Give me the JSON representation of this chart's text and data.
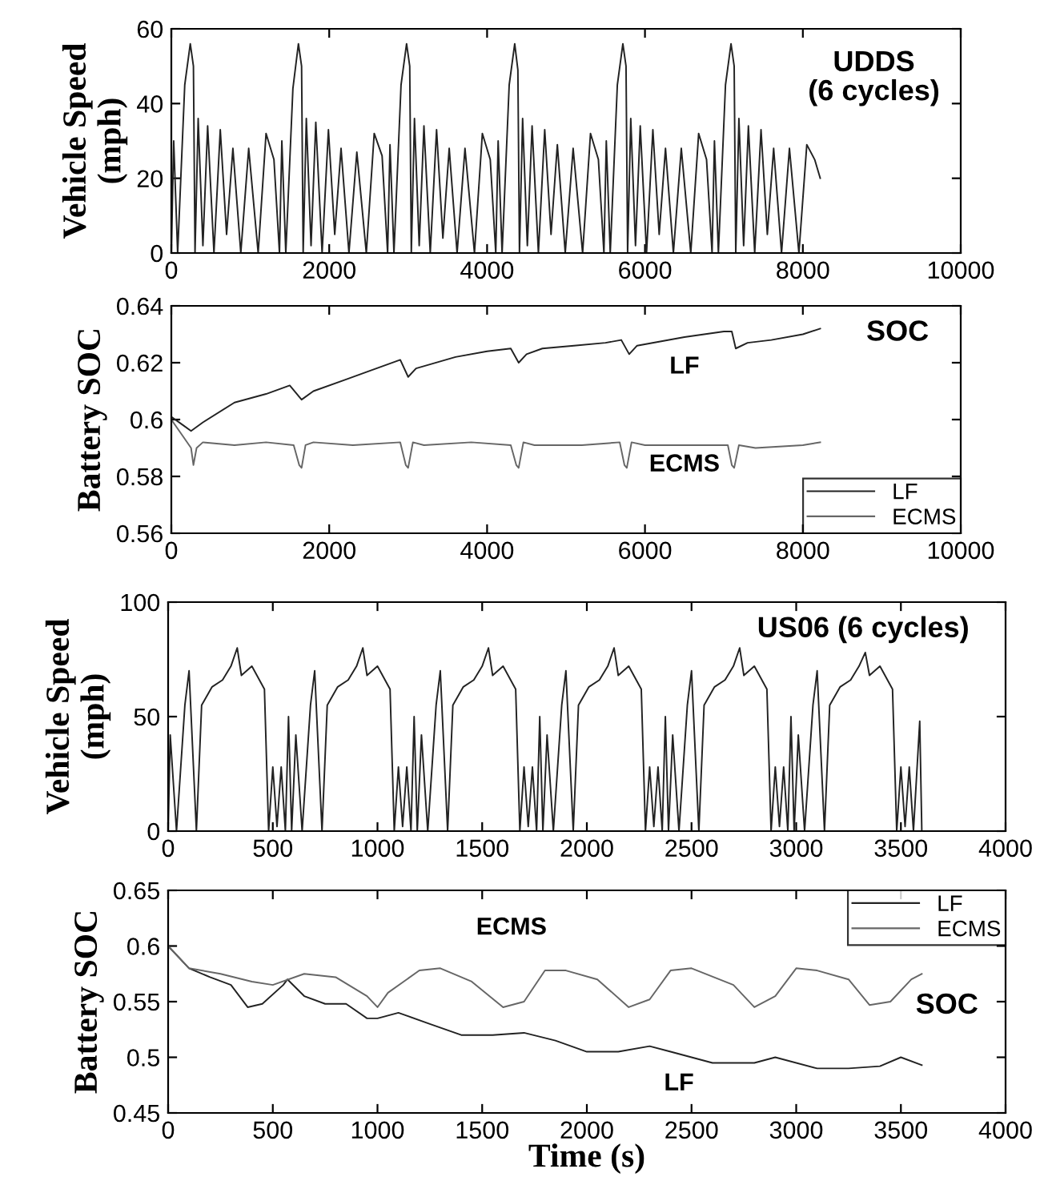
{
  "chart_data": [
    {
      "type": "line",
      "ylabel": "Vehicle Speed\n(mph)",
      "xlim": [
        0,
        10000
      ],
      "xticks": [
        0,
        2000,
        4000,
        6000,
        8000,
        10000
      ],
      "ylim": [
        0,
        60
      ],
      "yticks": [
        0,
        20,
        40,
        60
      ],
      "grid": false,
      "legend": false,
      "marker": "none",
      "line_style": "solid",
      "annotations": [
        "UDDS\n(6 cycles)"
      ],
      "series": [
        {
          "color": "#222222",
          "x": [
            0,
            30,
            80,
            170,
            240,
            280,
            300,
            340,
            400,
            460,
            540,
            620,
            700,
            780,
            880,
            980,
            1100,
            1200,
            1300,
            1370,
            1400,
            1450,
            1540,
            1610,
            1650,
            1670,
            1710,
            1770,
            1830,
            1910,
            1990,
            2070,
            2150,
            2250,
            2350,
            2470,
            2570,
            2670,
            2740,
            2770,
            2820,
            2910,
            2980,
            3020,
            3040,
            3080,
            3140,
            3200,
            3280,
            3360,
            3440,
            3520,
            3620,
            3720,
            3840,
            3940,
            4040,
            4110,
            4140,
            4190,
            4280,
            4350,
            4390,
            4410,
            4450,
            4510,
            4570,
            4650,
            4730,
            4810,
            4890,
            4990,
            5090,
            5210,
            5310,
            5410,
            5480,
            5510,
            5560,
            5650,
            5720,
            5760,
            5780,
            5820,
            5880,
            5940,
            6020,
            6100,
            6180,
            6260,
            6360,
            6460,
            6580,
            6680,
            6780,
            6850,
            6880,
            6930,
            7020,
            7090,
            7130,
            7150,
            7190,
            7250,
            7310,
            7390,
            7470,
            7550,
            7630,
            7730,
            7830,
            7950,
            8050,
            8150,
            8220
          ],
          "values": [
            0,
            30,
            0,
            45,
            56,
            50,
            0,
            36,
            2,
            34,
            0,
            33,
            5,
            28,
            0,
            28,
            0,
            32,
            25,
            0,
            30,
            0,
            44,
            56,
            50,
            0,
            36,
            2,
            35,
            0,
            33,
            5,
            28,
            0,
            27,
            0,
            32,
            26,
            0,
            29,
            0,
            45,
            56,
            50,
            0,
            36,
            2,
            34,
            0,
            33,
            4,
            28,
            0,
            28,
            0,
            32,
            25,
            0,
            30,
            0,
            45,
            56,
            49,
            0,
            36,
            2,
            34,
            0,
            33,
            5,
            29,
            0,
            28,
            0,
            32,
            25,
            0,
            30,
            0,
            45,
            56,
            50,
            0,
            36,
            2,
            34,
            0,
            33,
            5,
            28,
            0,
            28,
            0,
            32,
            25,
            0,
            30,
            0,
            45,
            56,
            50,
            0,
            36,
            2,
            34,
            0,
            33,
            5,
            28,
            0,
            28,
            0,
            29,
            25,
            20
          ]
        }
      ]
    },
    {
      "type": "line",
      "ylabel": "Battery SOC",
      "xlim": [
        0,
        10000
      ],
      "xticks": [
        0,
        2000,
        4000,
        6000,
        8000,
        10000
      ],
      "ylim": [
        0.56,
        0.64
      ],
      "yticks": [
        0.56,
        0.58,
        0.6,
        0.62,
        0.64
      ],
      "grid": false,
      "legend": "lower right",
      "marker": "none",
      "line_style": "solid",
      "annotations": [
        "SOC",
        "LF",
        "ECMS"
      ],
      "series": [
        {
          "name": "LF",
          "color": "#222222",
          "x": [
            0,
            150,
            250,
            400,
            800,
            1200,
            1500,
            1650,
            1800,
            2200,
            2500,
            2900,
            3000,
            3100,
            3600,
            4000,
            4300,
            4400,
            4500,
            4700,
            5100,
            5500,
            5700,
            5800,
            5900,
            6500,
            7000,
            7100,
            7150,
            7300,
            7600,
            8000,
            8220
          ],
          "values": [
            0.601,
            0.598,
            0.596,
            0.599,
            0.606,
            0.609,
            0.612,
            0.607,
            0.61,
            0.614,
            0.617,
            0.621,
            0.615,
            0.618,
            0.622,
            0.624,
            0.625,
            0.62,
            0.623,
            0.625,
            0.626,
            0.627,
            0.628,
            0.623,
            0.626,
            0.629,
            0.631,
            0.631,
            0.625,
            0.627,
            0.628,
            0.63,
            0.632
          ]
        },
        {
          "name": "ECMS",
          "color": "#666666",
          "x": [
            0,
            150,
            250,
            280,
            320,
            400,
            800,
            1200,
            1550,
            1620,
            1650,
            1700,
            1800,
            2300,
            2900,
            2970,
            3000,
            3060,
            3200,
            3800,
            4300,
            4370,
            4400,
            4460,
            4600,
            5200,
            5680,
            5740,
            5770,
            5830,
            6000,
            6600,
            7050,
            7100,
            7130,
            7190,
            7400,
            8000,
            8220
          ],
          "values": [
            0.6,
            0.594,
            0.59,
            0.584,
            0.59,
            0.592,
            0.591,
            0.592,
            0.591,
            0.584,
            0.583,
            0.591,
            0.592,
            0.591,
            0.592,
            0.584,
            0.583,
            0.592,
            0.591,
            0.592,
            0.591,
            0.584,
            0.583,
            0.592,
            0.591,
            0.591,
            0.592,
            0.584,
            0.583,
            0.592,
            0.591,
            0.591,
            0.591,
            0.584,
            0.583,
            0.591,
            0.59,
            0.591,
            0.592
          ]
        }
      ]
    },
    {
      "type": "line",
      "ylabel": "Vehicle Speed\n(mph)",
      "xlim": [
        0,
        4000
      ],
      "xticks": [
        0,
        500,
        1000,
        1500,
        2000,
        2500,
        3000,
        3500,
        4000
      ],
      "ylim": [
        0,
        100
      ],
      "yticks": [
        0,
        50,
        100
      ],
      "grid": false,
      "legend": false,
      "marker": "none",
      "line_style": "solid",
      "annotations": [
        "US06 (6 cycles)"
      ],
      "series": [
        {
          "color": "#222222",
          "x": [
            0,
            10,
            40,
            80,
            100,
            125,
            135,
            160,
            210,
            260,
            300,
            330,
            350,
            400,
            460,
            480,
            500,
            520,
            540,
            560,
            575,
            590,
            610,
            640,
            680,
            700,
            725,
            735,
            760,
            810,
            860,
            900,
            930,
            950,
            1000,
            1060,
            1080,
            1100,
            1120,
            1140,
            1160,
            1175,
            1190,
            1210,
            1240,
            1280,
            1300,
            1325,
            1335,
            1360,
            1410,
            1460,
            1500,
            1530,
            1550,
            1600,
            1660,
            1680,
            1700,
            1720,
            1740,
            1760,
            1775,
            1790,
            1810,
            1840,
            1880,
            1900,
            1925,
            1935,
            1960,
            2010,
            2060,
            2100,
            2130,
            2150,
            2200,
            2260,
            2280,
            2300,
            2320,
            2340,
            2360,
            2375,
            2390,
            2410,
            2440,
            2480,
            2500,
            2525,
            2535,
            2560,
            2610,
            2660,
            2700,
            2730,
            2750,
            2800,
            2860,
            2880,
            2900,
            2920,
            2940,
            2960,
            2975,
            2990,
            3010,
            3040,
            3080,
            3100,
            3125,
            3135,
            3160,
            3210,
            3260,
            3300,
            3330,
            3350,
            3400,
            3460,
            3480,
            3500,
            3520,
            3540,
            3560,
            3590,
            3600
          ],
          "values": [
            0,
            42,
            0,
            55,
            70,
            20,
            0,
            55,
            63,
            66,
            72,
            80,
            68,
            72,
            62,
            0,
            28,
            2,
            28,
            0,
            50,
            0,
            42,
            0,
            55,
            70,
            20,
            0,
            55,
            63,
            66,
            72,
            80,
            68,
            72,
            62,
            0,
            28,
            2,
            28,
            0,
            50,
            0,
            42,
            0,
            55,
            70,
            20,
            0,
            55,
            63,
            66,
            72,
            80,
            68,
            72,
            62,
            0,
            28,
            2,
            28,
            0,
            50,
            0,
            42,
            0,
            55,
            70,
            20,
            0,
            55,
            63,
            66,
            72,
            80,
            68,
            72,
            62,
            0,
            28,
            2,
            28,
            0,
            50,
            0,
            42,
            0,
            55,
            70,
            20,
            0,
            55,
            63,
            66,
            72,
            80,
            68,
            72,
            62,
            0,
            28,
            2,
            28,
            0,
            50,
            0,
            42,
            0,
            55,
            70,
            20,
            0,
            55,
            63,
            66,
            72,
            78,
            68,
            72,
            62,
            0,
            28,
            2,
            28,
            0,
            48,
            0
          ]
        }
      ]
    },
    {
      "type": "line",
      "ylabel": "Battery SOC",
      "xlabel": "Time (s)",
      "xlim": [
        0,
        4000
      ],
      "xticks": [
        0,
        500,
        1000,
        1500,
        2000,
        2500,
        3000,
        3500,
        4000
      ],
      "ylim": [
        0.45,
        0.65
      ],
      "yticks": [
        0.45,
        0.5,
        0.55,
        0.6,
        0.65
      ],
      "grid": false,
      "legend": "upper right",
      "marker": "none",
      "line_style": "solid",
      "annotations": [
        "SOC",
        "ECMS",
        "LF"
      ],
      "series": [
        {
          "name": "LF",
          "color": "#222222",
          "x": [
            0,
            100,
            200,
            300,
            380,
            450,
            550,
            570,
            650,
            750,
            850,
            950,
            1000,
            1100,
            1250,
            1400,
            1550,
            1700,
            1850,
            2000,
            2150,
            2300,
            2400,
            2600,
            2800,
            2900,
            3100,
            3250,
            3400,
            3500,
            3600
          ],
          "values": [
            0.6,
            0.58,
            0.572,
            0.565,
            0.545,
            0.548,
            0.565,
            0.57,
            0.555,
            0.548,
            0.548,
            0.535,
            0.535,
            0.54,
            0.53,
            0.52,
            0.52,
            0.522,
            0.515,
            0.505,
            0.505,
            0.51,
            0.505,
            0.495,
            0.495,
            0.5,
            0.49,
            0.49,
            0.492,
            0.5,
            0.493
          ]
        },
        {
          "name": "ECMS",
          "color": "#666666",
          "x": [
            0,
            100,
            250,
            400,
            500,
            650,
            800,
            950,
            1000,
            1050,
            1200,
            1300,
            1450,
            1600,
            1700,
            1800,
            1900,
            2050,
            2200,
            2300,
            2400,
            2500,
            2700,
            2800,
            2900,
            3000,
            3100,
            3250,
            3350,
            3450,
            3550,
            3600
          ],
          "values": [
            0.6,
            0.58,
            0.575,
            0.568,
            0.565,
            0.575,
            0.572,
            0.555,
            0.545,
            0.558,
            0.578,
            0.58,
            0.568,
            0.545,
            0.55,
            0.578,
            0.578,
            0.57,
            0.545,
            0.552,
            0.578,
            0.58,
            0.565,
            0.545,
            0.555,
            0.58,
            0.578,
            0.57,
            0.547,
            0.55,
            0.57,
            0.575
          ]
        }
      ]
    }
  ]
}
